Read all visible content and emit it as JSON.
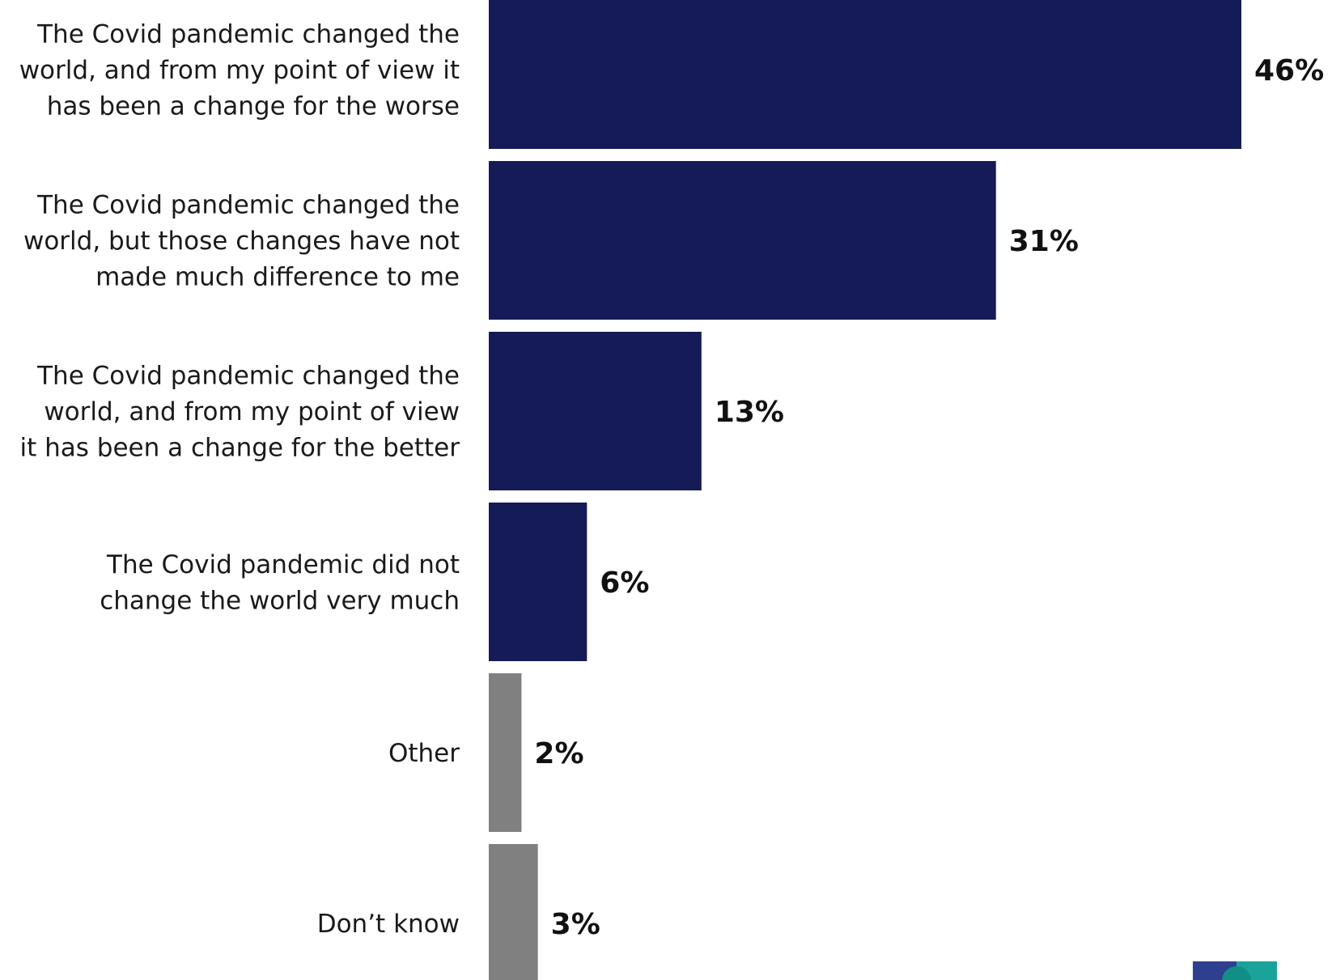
{
  "chart_data": {
    "type": "bar",
    "orientation": "horizontal",
    "categories": [
      [
        "The Covid pandemic changed the",
        "world, and from my point of view it",
        "has been a change for the worse"
      ],
      [
        "The Covid pandemic changed the",
        "world, but those changes have not",
        "made much difference to me"
      ],
      [
        "The Covid pandemic changed the",
        "world, and from my point of view",
        "it has been a change for the better"
      ],
      [
        "The Covid pandemic did not",
        "change the world very much"
      ],
      [
        "Other"
      ],
      [
        "Don’t know"
      ]
    ],
    "values": [
      46,
      31,
      13,
      6,
      2,
      3
    ],
    "value_labels": [
      "46%",
      "31%",
      "13%",
      "6%",
      "2%",
      "3%"
    ],
    "bar_colors": [
      "#141b56",
      "#141b56",
      "#141b56",
      "#141b56",
      "#808080",
      "#808080"
    ],
    "xlim": [
      0,
      50
    ],
    "grid": false,
    "legend": "none"
  },
  "logo": {
    "colors": [
      "#2f3f8f",
      "#1aa39a",
      "#0f8f86"
    ]
  }
}
